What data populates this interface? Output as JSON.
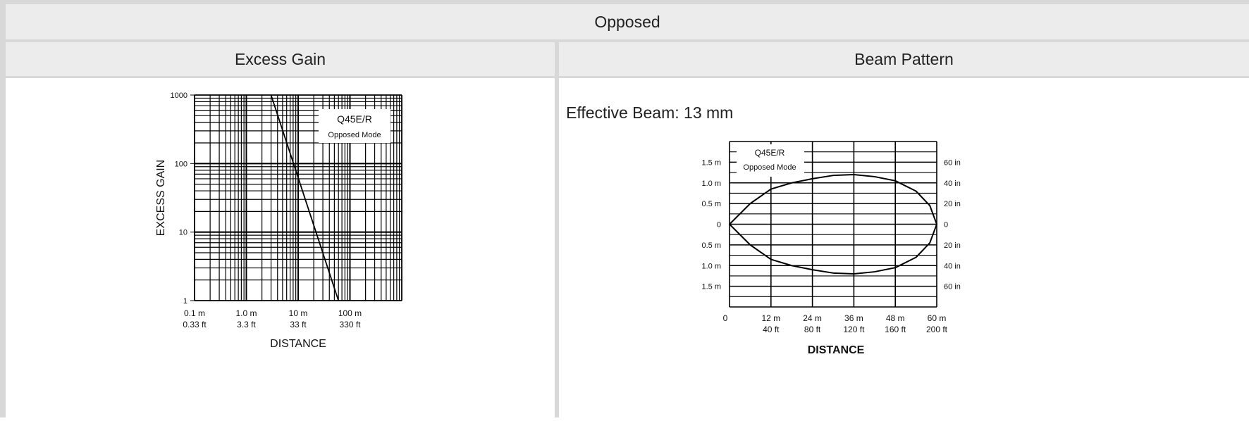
{
  "table": {
    "title": "Opposed",
    "col1_header": "Excess Gain",
    "col2_header": "Beam Pattern"
  },
  "beam_info": {
    "effective_beam": "Effective Beam: 13 mm"
  },
  "chart_data": [
    {
      "type": "line",
      "title": "",
      "xlabel": "DISTANCE",
      "ylabel": "EXCESS GAIN",
      "x_scale": "log",
      "y_scale": "log",
      "xlim": [
        0.1,
        1000
      ],
      "ylim": [
        1,
        1000
      ],
      "x_tick_labels_m": [
        "0.1 m",
        "1.0 m",
        "10 m",
        "100 m"
      ],
      "x_tick_labels_ft": [
        "0.33 ft",
        "3.3 ft",
        "33 ft",
        "330 ft"
      ],
      "y_tick_labels": [
        "1",
        "10",
        "100",
        "1000"
      ],
      "inset_legend": [
        "Q45E/R",
        "Opposed Mode"
      ],
      "series": [
        {
          "name": "Q45E/R",
          "x": [
            3,
            60
          ],
          "y": [
            1000,
            1
          ]
        }
      ]
    },
    {
      "type": "line",
      "title": "",
      "xlabel": "DISTANCE",
      "ylabel": "",
      "xlim": [
        0,
        60
      ],
      "ylim": [
        -2,
        2
      ],
      "x_tick_labels_m": [
        "0",
        "12 m",
        "24 m",
        "36 m",
        "48 m",
        "60 m"
      ],
      "x_tick_labels_ft": [
        "",
        "40 ft",
        "80 ft",
        "120 ft",
        "160 ft",
        "200 ft"
      ],
      "y_tick_labels_left": [
        "1.5 m",
        "1.0 m",
        "0.5 m",
        "0",
        "0.5 m",
        "1.0 m",
        "1.5 m"
      ],
      "y_tick_labels_right": [
        "60 in",
        "40 in",
        "20 in",
        "0",
        "20 in",
        "40 in",
        "60 in"
      ],
      "inset_legend": [
        "Q45E/R",
        "Opposed Mode"
      ],
      "series": [
        {
          "name": "Q45E/R",
          "x": [
            0,
            6,
            12,
            18,
            24,
            30,
            36,
            42,
            48,
            54,
            58,
            60
          ],
          "upper": [
            0,
            0.5,
            0.85,
            1.0,
            1.1,
            1.18,
            1.2,
            1.15,
            1.05,
            0.8,
            0.45,
            0
          ],
          "lower": [
            0,
            -0.5,
            -0.85,
            -1.0,
            -1.1,
            -1.18,
            -1.2,
            -1.15,
            -1.05,
            -0.8,
            -0.45,
            0
          ]
        }
      ]
    }
  ]
}
